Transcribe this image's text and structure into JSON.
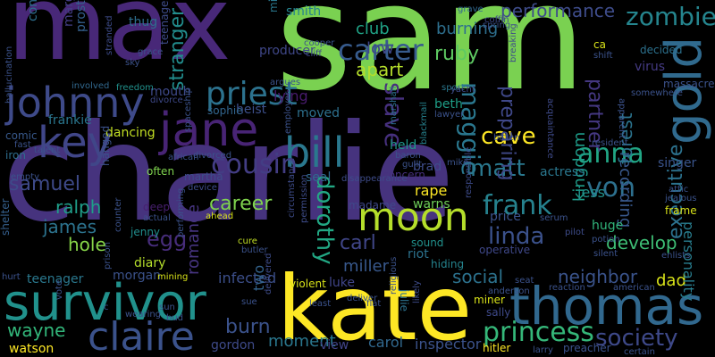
{
  "words": [
    {
      "text": "charlie",
      "color": "#46337e"
    },
    {
      "text": "sam",
      "color": "#7ad151"
    },
    {
      "text": "max",
      "color": "#482878"
    },
    {
      "text": "kate",
      "color": "#fde725"
    },
    {
      "text": "survivor",
      "color": "#21918c"
    },
    {
      "text": "thomas",
      "color": "#31688e"
    },
    {
      "text": "jane",
      "color": "#482475"
    },
    {
      "text": "johnny",
      "color": "#3e4a89"
    },
    {
      "text": "gold",
      "color": "#306a8e"
    },
    {
      "text": "claire",
      "color": "#3b528b"
    },
    {
      "text": "key",
      "color": "#404688"
    },
    {
      "text": "bill",
      "color": "#2a788e"
    },
    {
      "text": "moon",
      "color": "#b5de2b"
    },
    {
      "text": "priest",
      "color": "#2c728e"
    },
    {
      "text": "princess",
      "color": "#35b779"
    },
    {
      "text": "society",
      "color": "#3e4989"
    },
    {
      "text": "zombie",
      "color": "#25858e"
    },
    {
      "text": "cousin",
      "color": "#433d84"
    },
    {
      "text": "carter",
      "color": "#375b8d"
    },
    {
      "text": "anna",
      "color": "#21a685"
    },
    {
      "text": "frank",
      "color": "#26828e"
    },
    {
      "text": "linda",
      "color": "#3b518b"
    },
    {
      "text": "dorothy",
      "color": "#22a884"
    },
    {
      "text": "maggie",
      "color": "#2a778e"
    },
    {
      "text": "matt",
      "color": "#2a788e"
    },
    {
      "text": "cave",
      "color": "#fde725"
    },
    {
      "text": "von",
      "color": "#2d708e"
    },
    {
      "text": "slave",
      "color": "#46307e"
    },
    {
      "text": "samuel",
      "color": "#3e4a89"
    },
    {
      "text": "egg",
      "color": "#472d7b"
    },
    {
      "text": "james",
      "color": "#2c738e"
    },
    {
      "text": "ralph",
      "color": "#1f9e89"
    },
    {
      "text": "hole",
      "color": "#87d549"
    },
    {
      "text": "wayne",
      "color": "#32b67a"
    },
    {
      "text": "burn",
      "color": "#3b528b"
    },
    {
      "text": "executive",
      "color": "#2c728e"
    },
    {
      "text": "recording",
      "color": "#38588c"
    },
    {
      "text": "performance",
      "color": "#3e4c8a"
    },
    {
      "text": "burning",
      "color": "#2e6f8e"
    },
    {
      "text": "club",
      "color": "#20a386"
    },
    {
      "text": "ruby",
      "color": "#5ec962"
    },
    {
      "text": "apart",
      "color": "#b5de2b"
    },
    {
      "text": "low",
      "color": "#3f4788"
    },
    {
      "text": "forest",
      "color": "#2b748e"
    },
    {
      "text": "partner",
      "color": "#453882"
    },
    {
      "text": "preparing",
      "color": "#3f4889"
    },
    {
      "text": "kingdom",
      "color": "#1e9c89"
    },
    {
      "text": "neighbor",
      "color": "#3a538b"
    },
    {
      "text": "develop",
      "color": "#3dbc74"
    },
    {
      "text": "dad",
      "color": "#d8e219"
    },
    {
      "text": "personality",
      "color": "#287d8e"
    },
    {
      "text": "stranger",
      "color": "#228d8d"
    },
    {
      "text": "romance",
      "color": "#463480"
    },
    {
      "text": "career",
      "color": "#7fd34e"
    },
    {
      "text": "infected",
      "color": "#3c4f8a"
    },
    {
      "text": "moment",
      "color": "#2a778e"
    },
    {
      "text": "carl",
      "color": "#404688"
    },
    {
      "text": "miller",
      "color": "#38588c"
    },
    {
      "text": "social",
      "color": "#2c728e"
    },
    {
      "text": "inspector",
      "color": "#3b528b"
    },
    {
      "text": "carol",
      "color": "#31688e"
    },
    {
      "text": "view",
      "color": "#414487"
    },
    {
      "text": "gordon",
      "color": "#3e4a89"
    },
    {
      "text": "two",
      "color": "#33638d"
    },
    {
      "text": "watson",
      "color": "#fde725"
    },
    {
      "text": "teenager",
      "color": "#2a788e"
    },
    {
      "text": "morgan",
      "color": "#3b528b"
    },
    {
      "text": "jess",
      "color": "#21918c"
    },
    {
      "text": "rape",
      "color": "#fde725"
    },
    {
      "text": "warns",
      "color": "#6ece58"
    },
    {
      "text": "madame",
      "color": "#3f4889"
    },
    {
      "text": "brad",
      "color": "#3e4c8a"
    },
    {
      "text": "held",
      "color": "#1f968b"
    },
    {
      "text": "smith",
      "color": "#26828e"
    },
    {
      "text": "lying",
      "color": "#481b6d"
    },
    {
      "text": "moved",
      "color": "#2d708e"
    },
    {
      "text": "beth",
      "color": "#1f9f88"
    },
    {
      "text": "luke",
      "color": "#404588"
    },
    {
      "text": "riot",
      "color": "#2c728e"
    },
    {
      "text": "sound",
      "color": "#21918c"
    },
    {
      "text": "price",
      "color": "#3b528b"
    },
    {
      "text": "huge",
      "color": "#31b57b"
    },
    {
      "text": "singer",
      "color": "#3a548c"
    },
    {
      "text": "actress",
      "color": "#2a778e"
    },
    {
      "text": "virus",
      "color": "#443a83"
    },
    {
      "text": "decided",
      "color": "#2c718e"
    },
    {
      "text": "massacre",
      "color": "#3b528b"
    },
    {
      "text": "hiding",
      "color": "#25848e"
    },
    {
      "text": "sally",
      "color": "#3e4989"
    },
    {
      "text": "jenny",
      "color": "#218e8d"
    },
    {
      "text": "dancing",
      "color": "#c2df23"
    },
    {
      "text": "frankie",
      "color": "#2a768e"
    },
    {
      "text": "heist",
      "color": "#3c4f8a"
    },
    {
      "text": "sophie",
      "color": "#32658e"
    },
    {
      "text": "mouth",
      "color": "#3e4989"
    },
    {
      "text": "diary",
      "color": "#b5de2b"
    },
    {
      "text": "thug",
      "color": "#2e6e8e"
    },
    {
      "text": "conspiracy",
      "color": "#2e6f8e"
    },
    {
      "text": "margaret",
      "color": "#433e85"
    },
    {
      "text": "prostitute",
      "color": "#34608d"
    },
    {
      "text": "producer",
      "color": "#3f4788"
    },
    {
      "text": "often",
      "color": "#7fd34e"
    },
    {
      "text": "hanged",
      "color": "#3b528b"
    },
    {
      "text": "martha",
      "color": "#3e4c8a"
    },
    {
      "text": "seal",
      "color": "#31688e"
    },
    {
      "text": "concern",
      "color": "#46307e"
    },
    {
      "text": "deep",
      "color": "#481f70"
    },
    {
      "text": "iron",
      "color": "#2e6e8e"
    },
    {
      "text": "comic",
      "color": "#38598c"
    },
    {
      "text": "shelter",
      "color": "#355f8d"
    },
    {
      "text": "operative",
      "color": "#3f4889"
    },
    {
      "text": "sport",
      "color": "#2a788e"
    },
    {
      "text": "lawyer",
      "color": "#3b528b"
    },
    {
      "text": "mike",
      "color": "#3b528b"
    },
    {
      "text": "julie",
      "color": "#2c728e"
    },
    {
      "text": "mine",
      "color": "#2a788e"
    },
    {
      "text": "grave",
      "color": "#31688e"
    },
    {
      "text": "coffin",
      "color": "#3e4a89"
    },
    {
      "text": "cooper",
      "color": "#3b528b"
    },
    {
      "text": "cliff",
      "color": "#3e4a89"
    },
    {
      "text": "teenage",
      "color": "#3e4c8a"
    },
    {
      "text": "grace",
      "color": "#3b528b"
    },
    {
      "text": "sky",
      "color": "#3b528b"
    },
    {
      "text": "involved",
      "color": "#31688e"
    },
    {
      "text": "freedom",
      "color": "#21918c"
    },
    {
      "text": "divorce",
      "color": "#3e4989"
    },
    {
      "text": "hallucination",
      "color": "#3b528b"
    },
    {
      "text": "stranded",
      "color": "#3e4c8a"
    },
    {
      "text": "argues",
      "color": "#3b528b"
    },
    {
      "text": "marshall",
      "color": "#2c728e"
    },
    {
      "text": "blackmail",
      "color": "#26828e"
    },
    {
      "text": "baron",
      "color": "#3b528b"
    },
    {
      "text": "guilt",
      "color": "#3b528b"
    },
    {
      "text": "ca",
      "color": "#d8e219"
    },
    {
      "text": "shift",
      "color": "#3b528b"
    },
    {
      "text": "yacht",
      "color": "#3e4c8a"
    },
    {
      "text": "breaking",
      "color": "#3e4c8a"
    },
    {
      "text": "spring",
      "color": "#3b528b"
    },
    {
      "text": "somewhere",
      "color": "#3b528b"
    },
    {
      "text": "apparent",
      "color": "#3b528b"
    },
    {
      "text": "acquaintance",
      "color": "#3e4a89"
    },
    {
      "text": "bitten",
      "color": "#3b528b"
    },
    {
      "text": "resident",
      "color": "#3b528b"
    },
    {
      "text": "attic",
      "color": "#3b528b"
    },
    {
      "text": "jealous",
      "color": "#3b528b"
    },
    {
      "text": "frame",
      "color": "#d8e219"
    },
    {
      "text": "serum",
      "color": "#3b528b"
    },
    {
      "text": "pilot",
      "color": "#3e4c8a"
    },
    {
      "text": "potion",
      "color": "#3b528b"
    },
    {
      "text": "silent",
      "color": "#3b528b"
    },
    {
      "text": "enlists",
      "color": "#3b528b"
    },
    {
      "text": "disappearance",
      "color": "#3e4c8a"
    },
    {
      "text": "employer",
      "color": "#3b528b"
    },
    {
      "text": "device",
      "color": "#3e4c8a"
    },
    {
      "text": "ahead",
      "color": "#d8e219"
    },
    {
      "text": "actual",
      "color": "#3b528b"
    },
    {
      "text": "cure",
      "color": "#c2df23"
    },
    {
      "text": "butler",
      "color": "#3b528b"
    },
    {
      "text": "circumstance",
      "color": "#3e4c8a"
    },
    {
      "text": "permission",
      "color": "#3e4c8a"
    },
    {
      "text": "responsible",
      "color": "#3e4c8a"
    },
    {
      "text": "violent",
      "color": "#d8e219"
    },
    {
      "text": "least",
      "color": "#3b528b"
    },
    {
      "text": "sue",
      "color": "#3b528b"
    },
    {
      "text": "deliver",
      "color": "#3b528b"
    },
    {
      "text": "delivered",
      "color": "#3e4c8a"
    },
    {
      "text": "flat",
      "color": "#3b528b"
    },
    {
      "text": "religious",
      "color": "#3b528b"
    },
    {
      "text": "likely",
      "color": "#3e4c8a"
    },
    {
      "text": "miner",
      "color": "#d8e219"
    },
    {
      "text": "anderson",
      "color": "#3b528b"
    },
    {
      "text": "seat",
      "color": "#3b528b"
    },
    {
      "text": "reaction",
      "color": "#3b528b"
    },
    {
      "text": "american",
      "color": "#3b528b"
    },
    {
      "text": "certain",
      "color": "#3b528b"
    },
    {
      "text": "preacher",
      "color": "#3b528b"
    },
    {
      "text": "larry",
      "color": "#3b528b"
    },
    {
      "text": "hitler",
      "color": "#fde725"
    },
    {
      "text": "mining",
      "color": "#d8e219"
    },
    {
      "text": "prison",
      "color": "#3b528b"
    },
    {
      "text": "counter",
      "color": "#3b528b"
    },
    {
      "text": "performing",
      "color": "#3b528b"
    },
    {
      "text": "talent",
      "color": "#3b528b"
    },
    {
      "text": "fast",
      "color": "#3b528b"
    },
    {
      "text": "empty",
      "color": "#3b528b"
    },
    {
      "text": "spaceship",
      "color": "#3b528b"
    },
    {
      "text": "african",
      "color": "#3b528b"
    },
    {
      "text": "divorced",
      "color": "#3b528b"
    },
    {
      "text": "hurt",
      "color": "#3b528b"
    },
    {
      "text": "vote",
      "color": "#3b528b"
    },
    {
      "text": "wearing",
      "color": "#3b528b"
    },
    {
      "text": "sun",
      "color": "#3b528b"
    },
    {
      "text": "bud",
      "color": "#3b528b"
    },
    {
      "text": "c",
      "color": "#3b528b"
    }
  ]
}
